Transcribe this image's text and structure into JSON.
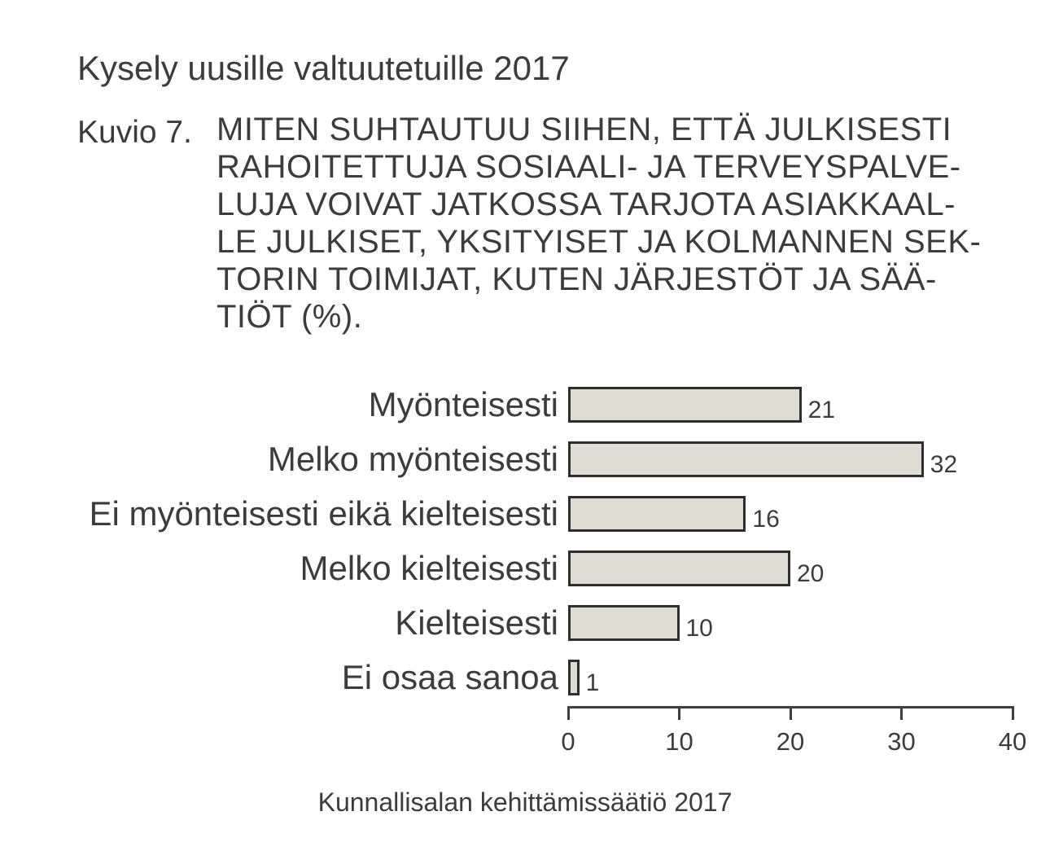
{
  "page": {
    "title": "Kysely uusille valtuutetuille 2017"
  },
  "figure": {
    "label": "Kuvio 7.",
    "caption_lines": [
      "MITEN SUHTAUTUU SIIHEN, ETTÄ JULKISESTI",
      "RAHOITETTUJA SOSIAALI- JA TERVEYSPALVE-",
      "LUJA VOIVAT JATKOSSA TARJOTA ASIAKKAAL-",
      "LE JULKISET, YKSITYISET JA KOLMANNEN SEK-",
      "TORIN TOIMIJAT, KUTEN JÄRJESTÖT JA SÄÄ-",
      "TIÖT (%)."
    ]
  },
  "chart_data": {
    "type": "bar",
    "orientation": "horizontal",
    "categories": [
      "Myönteisesti",
      "Melko myönteisesti",
      "Ei myönteisesti eikä kielteisesti",
      "Melko kielteisesti",
      "Kielteisesti",
      "Ei osaa sanoa"
    ],
    "values": [
      21,
      32,
      16,
      20,
      10,
      1
    ],
    "value_labels": [
      "21",
      "32",
      "16",
      "20",
      "10",
      "1"
    ],
    "x_ticks": [
      "0",
      "10",
      "20",
      "30",
      "40"
    ],
    "xlim": [
      0,
      40
    ],
    "grid": false,
    "legend": false,
    "bar_fill_color": "#dddcd2",
    "bar_border_color": "#2e2e2e",
    "text_color": "#3c3c3c"
  },
  "footer": {
    "source": "Kunnallisalan kehittämissäätiö 2017"
  }
}
